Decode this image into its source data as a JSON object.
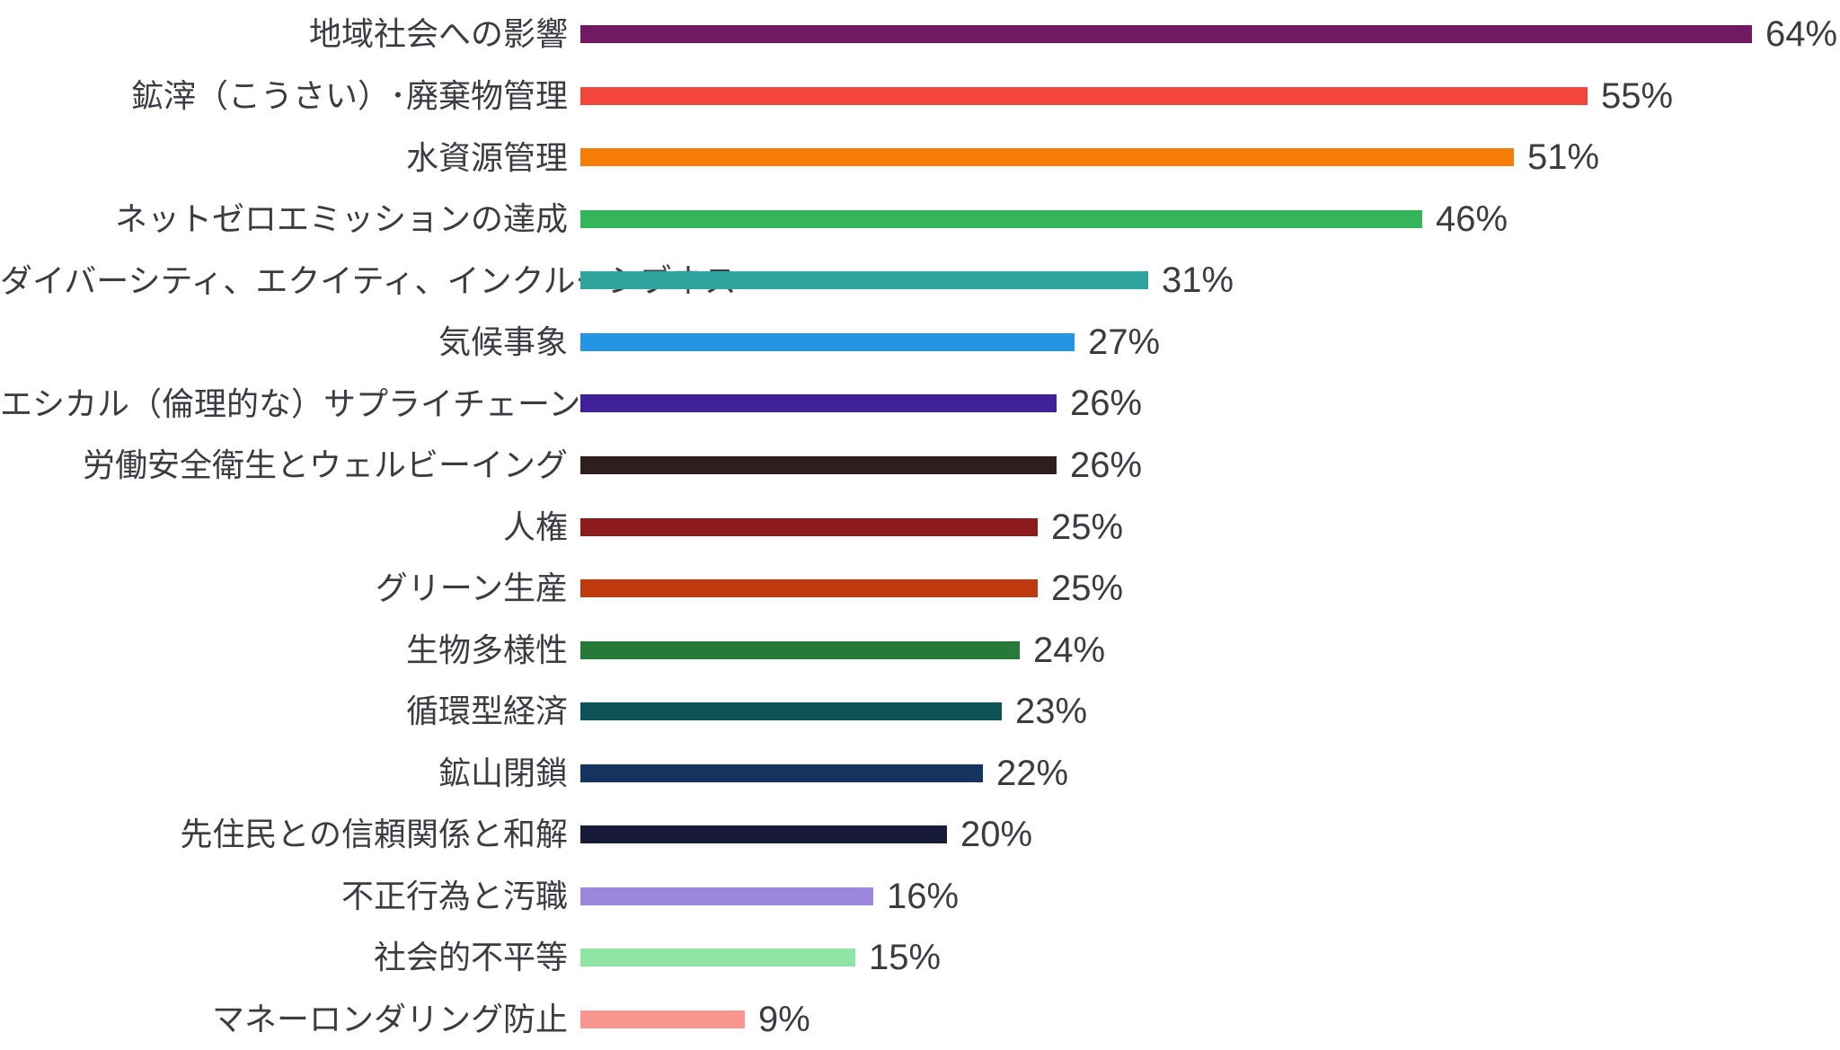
{
  "page": {
    "background": "#ffffff",
    "text_color": "#3b3b43"
  },
  "chart_data": {
    "type": "bar",
    "orientation": "horizontal",
    "title": "",
    "xlabel": "",
    "ylabel": "",
    "xlim": [
      0,
      64
    ],
    "grid": false,
    "legend": false,
    "value_label_position": "end-of-bar",
    "categories": [
      "地域社会への影響",
      "鉱滓（こうさい）･廃棄物管理",
      "水資源管理",
      "ネットゼロエミッションの達成",
      "ダイバーシティ、エクイティ、インクルーシブネス",
      "気候事象",
      "エシカル（倫理的な）サプライチェーン",
      "労働安全衛生とウェルビーイング",
      "人権",
      "グリーン生産",
      "生物多様性",
      "循環型経済",
      "鉱山閉鎖",
      "先住民との信頼関係と和解",
      "不正行為と汚職",
      "社会的不平等",
      "マネーロンダリング防止"
    ],
    "values": [
      64,
      55,
      51,
      46,
      31,
      27,
      26,
      26,
      25,
      25,
      24,
      23,
      22,
      20,
      16,
      15,
      9
    ],
    "value_labels": [
      "64%",
      "55%",
      "51%",
      "46%",
      "31%",
      "27%",
      "26%",
      "26%",
      "25%",
      "25%",
      "24%",
      "23%",
      "22%",
      "20%",
      "16%",
      "15%",
      "9%"
    ],
    "bar_colors": [
      "#701a64",
      "#f4453c",
      "#f57d05",
      "#36b45a",
      "#2fa39e",
      "#2395e2",
      "#41209b",
      "#2f1e20",
      "#8c1c1c",
      "#c03a10",
      "#27793a",
      "#0f5359",
      "#14335f",
      "#171b39",
      "#9b87dc",
      "#90e5a5",
      "#f8968f"
    ]
  }
}
